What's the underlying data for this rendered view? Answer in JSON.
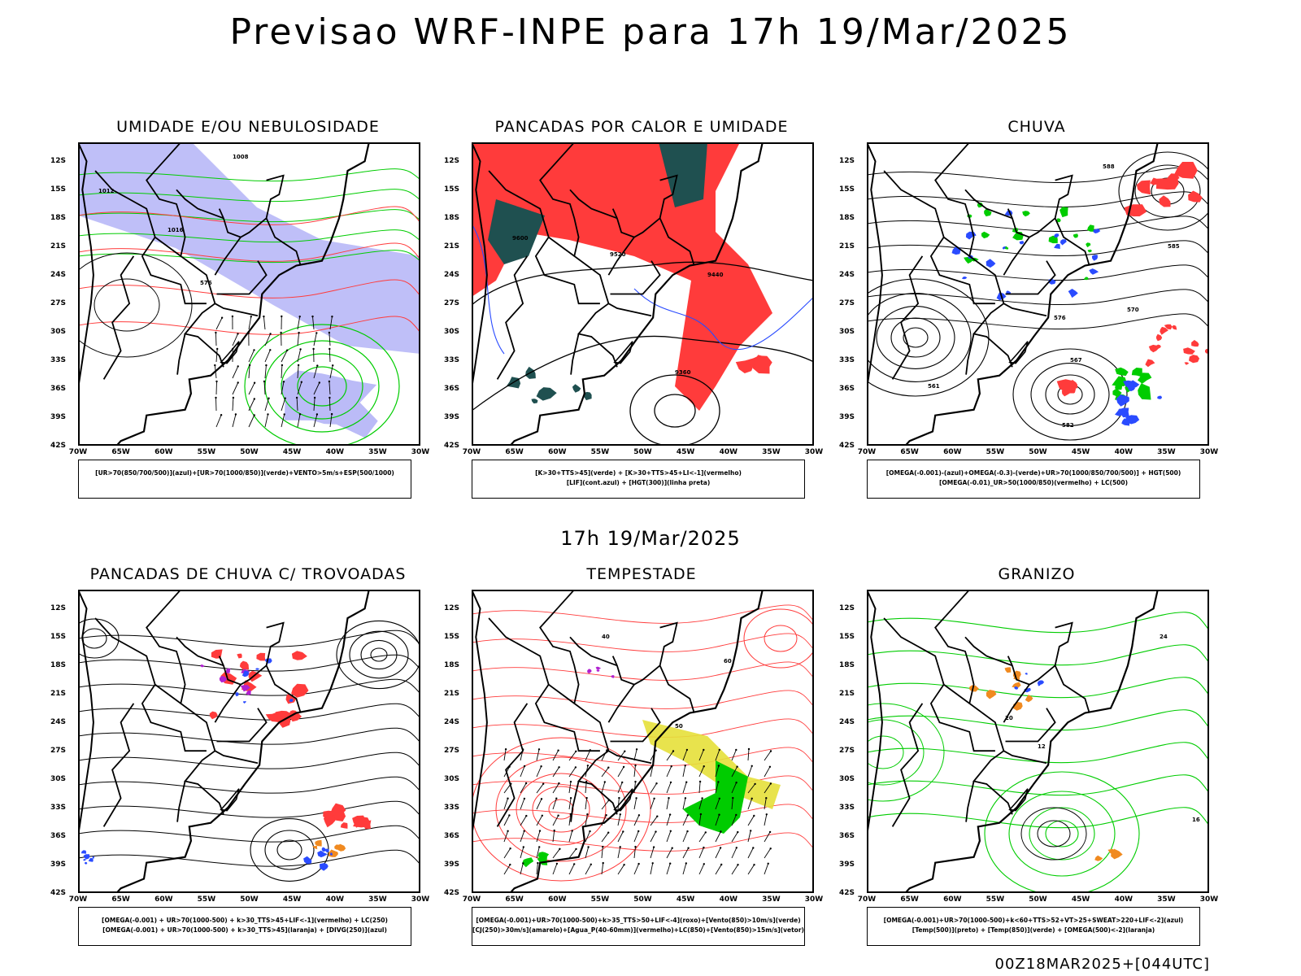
{
  "header": {
    "title": "Previsao WRF-INPE  para 17h 19/Mar/2025"
  },
  "middle": {
    "subtitle": "17h 19/Mar/2025"
  },
  "footer": {
    "run": "00Z18MAR2025+[044UTC]"
  },
  "axes": {
    "lat_labels": [
      "12S",
      "15S",
      "18S",
      "21S",
      "24S",
      "27S",
      "30S",
      "33S",
      "36S",
      "39S",
      "42S"
    ],
    "lon_labels": [
      "70W",
      "65W",
      "60W",
      "55W",
      "50W",
      "45W",
      "40W",
      "35W",
      "30W"
    ]
  },
  "panels": [
    {
      "title": "UMIDADE E/OU NEBULOSIDADE",
      "legend": [
        "[UR>70(850/700/500)](azul)+[UR>70(1000/850)](verde)+VENTO>5m/s+ESP(500/1000)"
      ],
      "contours": [
        "1008",
        "1012",
        "1016",
        "576"
      ]
    },
    {
      "title": "PANCADAS POR CALOR E UMIDADE",
      "legend": [
        "[K>30+TTS>45](verde) + [K>30+TTS>45+LI<-1](vermelho)",
        "[LIF](cont.azul) + [HGT(300)](linha preta)"
      ],
      "contours": [
        "9600",
        "9520",
        "9440",
        "9360"
      ]
    },
    {
      "title": "CHUVA",
      "legend": [
        "[OMEGA(-0.001)-(azul)+OMEGA(-0.3)-(verde)+UR>70(1000/850/700/500)] + HGT(500)",
        "[OMEGA(-0.01)_UR>50(1000/850)(vermelho) + LC(500)"
      ],
      "contours": [
        "588",
        "585",
        "576",
        "570",
        "567",
        "561",
        "582"
      ]
    },
    {
      "title": "PANCADAS DE CHUVA C/ TROVOADAS",
      "legend": [
        "[OMEGA(-0.001) + UR>70(1000-500) + k>30_TTS>45+LIF<-1](vermelho) + LC(250)",
        "[OMEGA(-0.001) + UR>70(1000-500) + k>30_TTS>45](laranja) + [DIVG(250)](azul)"
      ],
      "contours": []
    },
    {
      "title": "TEMPESTADE",
      "legend": [
        "[OMEGA(-0.001)+UR>70(1000-500)+k>35_TTS>50+LIF<-4](roxo)+[Vento(850)>10m/s](verde)",
        "[CJ(250)>30m/s](amarelo)+[Agua_P(40-60mm)](vermelho)+LC(850)+[Vento(850)>15m/s](vetor)"
      ],
      "contours": [
        "40",
        "50",
        "60"
      ]
    },
    {
      "title": "GRANIZO",
      "legend": [
        "[OMEGA(-0.001)+UR>70(1000-500)+k<60+TTS>52+VT>25+SWEAT>220+LIF<-2](azul)",
        "[Temp(500)](preto) + [Temp(850)](verde) + [OMEGA(500)<-2](laranja)"
      ],
      "contours": [
        "12",
        "16",
        "20",
        "24"
      ]
    }
  ],
  "colors": {
    "red": "#ff3b3b",
    "green": "#00cc00",
    "blue": "#2a4bff",
    "lavender": "#aaaaf5",
    "darkteal": "#1f5050",
    "yellow": "#e6e03a",
    "orange": "#f08a20",
    "purple": "#b020d0"
  }
}
